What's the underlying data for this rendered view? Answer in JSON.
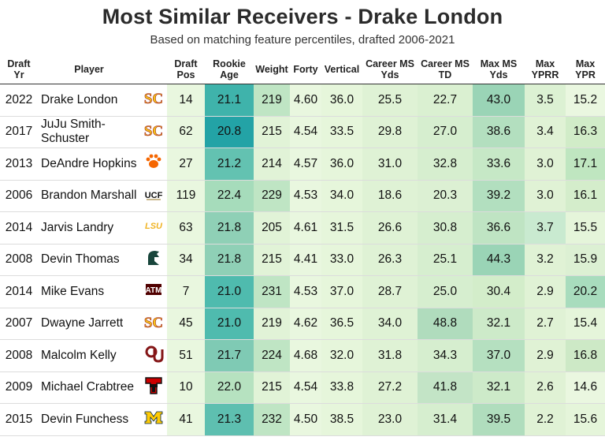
{
  "chart_data": {
    "type": "table",
    "title": "Most Similar Receivers - Drake London",
    "subtitle": "Based on matching feature percentiles, drafted 2006-2021",
    "columns": [
      "Draft Yr",
      "Player",
      "Draft Pos",
      "Rookie Age",
      "Weight",
      "Forty",
      "Vertical",
      "Career MS Yds",
      "Career MS TD",
      "Max MS Yds",
      "Max YPRR",
      "Max YPR"
    ],
    "rows": [
      {
        "yr": "2022",
        "player": "Drake London",
        "school_icon": "usc-logo-icon",
        "draft_pos": "14",
        "rookie_age": "21.1",
        "weight": "219",
        "forty": "4.60",
        "vertical": "36.0",
        "career_ms_yds": "25.5",
        "career_ms_td": "22.7",
        "max_ms_yds": "43.0",
        "max_yprr": "3.5",
        "max_ypr": "15.2"
      },
      {
        "yr": "2017",
        "player": "JuJu Smith-Schuster",
        "school_icon": "usc-logo-icon",
        "draft_pos": "62",
        "rookie_age": "20.8",
        "weight": "215",
        "forty": "4.54",
        "vertical": "33.5",
        "career_ms_yds": "29.8",
        "career_ms_td": "27.0",
        "max_ms_yds": "38.6",
        "max_yprr": "3.4",
        "max_ypr": "16.3"
      },
      {
        "yr": "2013",
        "player": "DeAndre Hopkins",
        "school_icon": "clemson-paw-icon",
        "draft_pos": "27",
        "rookie_age": "21.2",
        "weight": "214",
        "forty": "4.57",
        "vertical": "36.0",
        "career_ms_yds": "31.0",
        "career_ms_td": "32.8",
        "max_ms_yds": "33.6",
        "max_yprr": "3.0",
        "max_ypr": "17.1"
      },
      {
        "yr": "2006",
        "player": "Brandon Marshall",
        "school_icon": "ucf-logo-icon",
        "draft_pos": "119",
        "rookie_age": "22.4",
        "weight": "229",
        "forty": "4.53",
        "vertical": "34.0",
        "career_ms_yds": "18.6",
        "career_ms_td": "20.3",
        "max_ms_yds": "39.2",
        "max_yprr": "3.0",
        "max_ypr": "16.1"
      },
      {
        "yr": "2014",
        "player": "Jarvis Landry",
        "school_icon": "lsu-logo-icon",
        "draft_pos": "63",
        "rookie_age": "21.8",
        "weight": "205",
        "forty": "4.61",
        "vertical": "31.5",
        "career_ms_yds": "26.6",
        "career_ms_td": "30.8",
        "max_ms_yds": "36.6",
        "max_yprr": "3.7",
        "max_ypr": "15.5"
      },
      {
        "yr": "2008",
        "player": "Devin Thomas",
        "school_icon": "michigan-state-spartan-icon",
        "draft_pos": "34",
        "rookie_age": "21.8",
        "weight": "215",
        "forty": "4.41",
        "vertical": "33.0",
        "career_ms_yds": "26.3",
        "career_ms_td": "25.1",
        "max_ms_yds": "44.3",
        "max_yprr": "3.2",
        "max_ypr": "15.9"
      },
      {
        "yr": "2014",
        "player": "Mike Evans",
        "school_icon": "texas-am-logo-icon",
        "draft_pos": "7",
        "rookie_age": "21.0",
        "weight": "231",
        "forty": "4.53",
        "vertical": "37.0",
        "career_ms_yds": "28.7",
        "career_ms_td": "25.0",
        "max_ms_yds": "30.4",
        "max_yprr": "2.9",
        "max_ypr": "20.2"
      },
      {
        "yr": "2007",
        "player": "Dwayne Jarrett",
        "school_icon": "usc-logo-icon",
        "draft_pos": "45",
        "rookie_age": "21.0",
        "weight": "219",
        "forty": "4.62",
        "vertical": "36.5",
        "career_ms_yds": "34.0",
        "career_ms_td": "48.8",
        "max_ms_yds": "32.1",
        "max_yprr": "2.7",
        "max_ypr": "15.4"
      },
      {
        "yr": "2008",
        "player": "Malcolm Kelly",
        "school_icon": "oklahoma-ou-icon",
        "draft_pos": "51",
        "rookie_age": "21.7",
        "weight": "224",
        "forty": "4.68",
        "vertical": "32.0",
        "career_ms_yds": "31.8",
        "career_ms_td": "34.3",
        "max_ms_yds": "37.0",
        "max_yprr": "2.9",
        "max_ypr": "16.8"
      },
      {
        "yr": "2009",
        "player": "Michael Crabtree",
        "school_icon": "texas-tech-logo-icon",
        "draft_pos": "10",
        "rookie_age": "22.0",
        "weight": "215",
        "forty": "4.54",
        "vertical": "33.8",
        "career_ms_yds": "27.2",
        "career_ms_td": "41.8",
        "max_ms_yds": "32.1",
        "max_yprr": "2.6",
        "max_ypr": "14.6"
      },
      {
        "yr": "2015",
        "player": "Devin Funchess",
        "school_icon": "michigan-block-m-icon",
        "draft_pos": "41",
        "rookie_age": "21.3",
        "weight": "232",
        "forty": "4.50",
        "vertical": "38.5",
        "career_ms_yds": "23.0",
        "career_ms_td": "31.4",
        "max_ms_yds": "39.5",
        "max_yprr": "2.2",
        "max_ypr": "15.6"
      }
    ],
    "cell_shade": [
      [
        "#e9f7df",
        "#3fb3ab",
        "#bfe5c4",
        "#e9f7df",
        "#e6f6db",
        "#dff2d5",
        "#daf0d1",
        "#9ad4b6",
        "#dcf1d3",
        "#eaf7e0"
      ],
      [
        "#e9f7df",
        "#23a3a6",
        "#e1f3d7",
        "#e9f7df",
        "#e6f6db",
        "#dff2d5",
        "#d6eecf",
        "#b3dfbf",
        "#e0f2d5",
        "#d1ecc8"
      ],
      [
        "#e9f7df",
        "#63c2b1",
        "#e1f3d7",
        "#e9f7df",
        "#e6f6db",
        "#dff2d5",
        "#d6eecf",
        "#c6e8c6",
        "#e0f2d5",
        "#bfe6c0"
      ],
      [
        "#e9f7df",
        "#a6dcbb",
        "#bfe5c4",
        "#e9f7df",
        "#e6f6db",
        "#dff2d5",
        "#dcf0d3",
        "#b2dfbf",
        "#e0f2d5",
        "#d4edcb"
      ],
      [
        "#e9f7df",
        "#8fd0b6",
        "#e1f3d7",
        "#e9f7df",
        "#e6f6db",
        "#dff2d5",
        "#d6eecf",
        "#bfe4c3",
        "#c9ead0",
        "#e5f5da"
      ],
      [
        "#e9f7df",
        "#8fd0b6",
        "#e1f3d7",
        "#e9f7df",
        "#e6f6db",
        "#dff2d5",
        "#d6eecf",
        "#9ad4b6",
        "#e0f2d5",
        "#dcf0d3"
      ],
      [
        "#e9f7df",
        "#4fbbae",
        "#bfe5c4",
        "#e9f7df",
        "#e6f6db",
        "#dff2d5",
        "#d6eecf",
        "#d3edca",
        "#e0f2d5",
        "#a8dcbd"
      ],
      [
        "#e9f7df",
        "#4fbbae",
        "#e1f3d7",
        "#e9f7df",
        "#e6f6db",
        "#dff2d5",
        "#b0dcbd",
        "#cdeac9",
        "#e0f2d5",
        "#e5f5da"
      ],
      [
        "#e9f7df",
        "#7fcab4",
        "#bfe5c4",
        "#e9f7df",
        "#e6f6db",
        "#dff2d5",
        "#d6eecf",
        "#b5e0c0",
        "#e0f2d5",
        "#cde9c6"
      ],
      [
        "#e9f7df",
        "#b6e2c0",
        "#e1f3d7",
        "#e9f7df",
        "#e6f6db",
        "#dff2d5",
        "#c3e4c6",
        "#cdeac9",
        "#e0f2d5",
        "#eaf7e0"
      ],
      [
        "#e9f7df",
        "#5ebfb0",
        "#bfe5c4",
        "#e9f7df",
        "#e6f6db",
        "#dff2d5",
        "#d6eecf",
        "#b0ddbd",
        "#e0f2d5",
        "#e5f5da"
      ]
    ]
  }
}
